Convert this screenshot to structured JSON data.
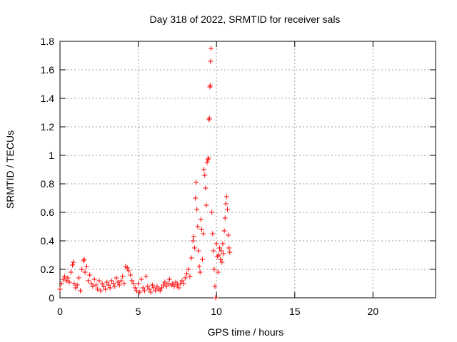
{
  "chart_data": {
    "type": "scatter",
    "title": "Day 318 of 2022, SRMTID for receiver sals",
    "xlabel": "GPS time / hours",
    "ylabel": "SRMTID / TECUs",
    "xlim": [
      0,
      24
    ],
    "ylim": [
      0,
      1.8
    ],
    "xticks": [
      0,
      5,
      10,
      15,
      20
    ],
    "xtick_labels": [
      "0",
      "5",
      "10",
      "15",
      "20"
    ],
    "yticks": [
      0,
      0.2,
      0.4,
      0.6,
      0.8,
      1.0,
      1.2,
      1.4,
      1.6,
      1.8
    ],
    "ytick_labels": [
      "0",
      "0.2",
      "0.4",
      "0.6",
      "0.8",
      "1",
      "1.2",
      "1.4",
      "1.6",
      "1.8"
    ],
    "grid": true,
    "marker": "+",
    "color": "#ff0000",
    "series": [
      {
        "name": "sals",
        "x": [
          0.0,
          0.1,
          0.2,
          0.3,
          0.4,
          0.5,
          0.6,
          0.7,
          0.8,
          0.85,
          0.9,
          1.0,
          1.1,
          1.2,
          1.3,
          1.4,
          1.5,
          1.55,
          1.6,
          1.7,
          1.8,
          1.9,
          2.0,
          2.1,
          2.2,
          2.3,
          2.4,
          2.5,
          2.6,
          2.7,
          2.8,
          2.9,
          3.0,
          3.1,
          3.2,
          3.3,
          3.4,
          3.5,
          3.6,
          3.7,
          3.8,
          3.9,
          4.0,
          4.1,
          4.2,
          4.3,
          4.4,
          4.5,
          4.6,
          4.7,
          4.8,
          4.9,
          5.0,
          5.1,
          5.2,
          5.3,
          5.4,
          5.5,
          5.6,
          5.7,
          5.8,
          5.9,
          6.0,
          6.1,
          6.2,
          6.3,
          6.4,
          6.5,
          6.6,
          6.7,
          6.8,
          6.9,
          7.0,
          7.1,
          7.2,
          7.3,
          7.4,
          7.5,
          7.6,
          7.7,
          7.8,
          7.9,
          8.0,
          8.1,
          8.2,
          8.3,
          8.4,
          8.5,
          8.55,
          8.6,
          8.65,
          8.7,
          8.75,
          8.8,
          8.85,
          8.9,
          8.95,
          9.0,
          9.05,
          9.1,
          9.15,
          9.2,
          9.25,
          9.3,
          9.35,
          9.4,
          9.45,
          9.5,
          9.52,
          9.55,
          9.58,
          9.6,
          9.62,
          9.65,
          9.7,
          9.75,
          9.8,
          9.85,
          9.9,
          9.95,
          10.0,
          10.05,
          10.1,
          10.15,
          10.2,
          10.25,
          10.3,
          10.35,
          10.4,
          10.45,
          10.5,
          10.55,
          10.6,
          10.65,
          10.7,
          10.75,
          10.8,
          10.85
        ],
        "y": [
          0.06,
          0.1,
          0.13,
          0.15,
          0.12,
          0.14,
          0.11,
          0.18,
          0.23,
          0.25,
          0.1,
          0.07,
          0.09,
          0.14,
          0.05,
          0.2,
          0.26,
          0.27,
          0.18,
          0.22,
          0.12,
          0.16,
          0.1,
          0.08,
          0.13,
          0.09,
          0.06,
          0.12,
          0.05,
          0.1,
          0.08,
          0.06,
          0.11,
          0.09,
          0.07,
          0.12,
          0.1,
          0.08,
          0.14,
          0.11,
          0.09,
          0.12,
          0.15,
          0.1,
          0.22,
          0.21,
          0.19,
          0.16,
          0.12,
          0.1,
          0.07,
          0.05,
          0.1,
          0.04,
          0.13,
          0.07,
          0.05,
          0.15,
          0.08,
          0.06,
          0.04,
          0.09,
          0.07,
          0.05,
          0.08,
          0.06,
          0.05,
          0.07,
          0.09,
          0.11,
          0.08,
          0.1,
          0.13,
          0.09,
          0.1,
          0.08,
          0.11,
          0.09,
          0.07,
          0.1,
          0.12,
          0.1,
          0.14,
          0.17,
          0.2,
          0.15,
          0.28,
          0.4,
          0.43,
          0.35,
          0.7,
          0.81,
          0.62,
          0.5,
          0.33,
          0.22,
          0.18,
          0.55,
          0.48,
          0.27,
          0.45,
          0.9,
          0.86,
          0.77,
          0.65,
          0.95,
          0.97,
          0.98,
          1.25,
          1.26,
          1.48,
          1.49,
          1.66,
          1.75,
          0.6,
          0.45,
          0.33,
          0.2,
          0.08,
          0.0,
          0.38,
          0.29,
          0.18,
          0.3,
          0.35,
          0.27,
          0.33,
          0.25,
          0.38,
          0.31,
          0.47,
          0.56,
          0.66,
          0.71,
          0.62,
          0.44,
          0.35,
          0.32
        ]
      }
    ]
  }
}
